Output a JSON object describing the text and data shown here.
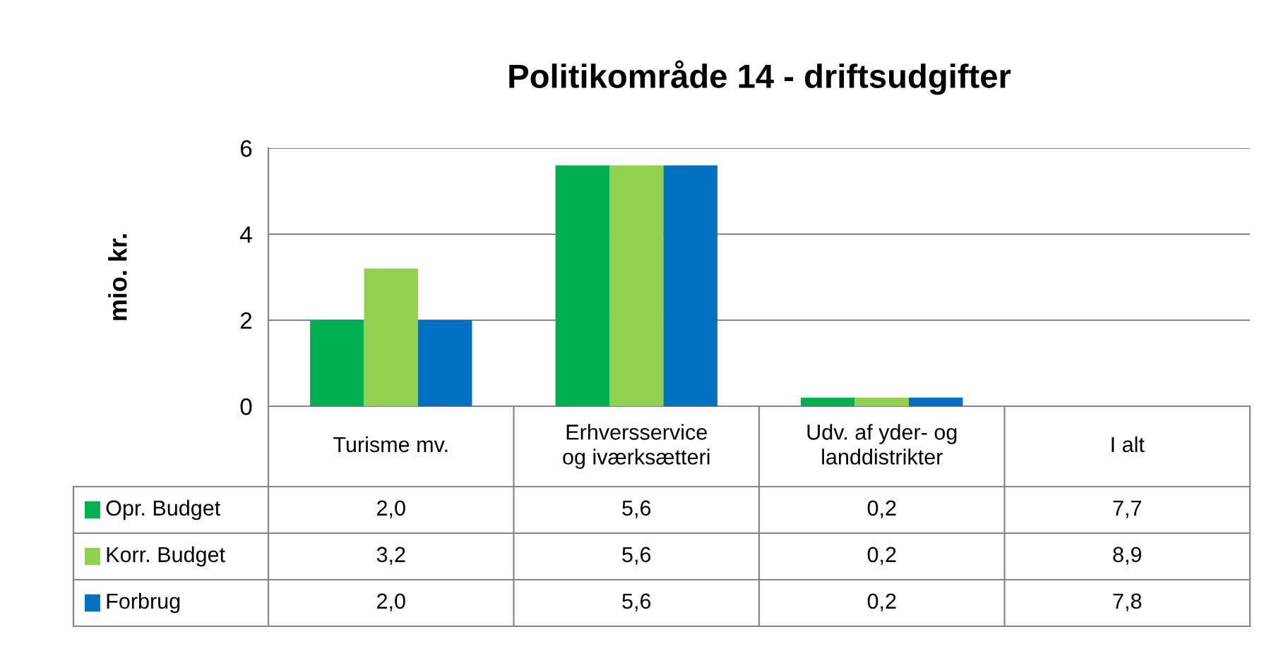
{
  "chart_data": {
    "type": "bar",
    "title": "Politikområde 14 - driftsudgifter",
    "ylabel": "mio. kr.",
    "categories": [
      "Turisme mv.",
      "Erhversservice\nog iværksætteri",
      "Udv. af yder- og\nlanddistrikter",
      "I alt"
    ],
    "series": [
      {
        "name": "Opr. Budget",
        "color": "#00b050",
        "values": [
          2.0,
          5.6,
          0.2,
          null
        ],
        "value_labels": [
          "2,0",
          "5,6",
          "0,2",
          "7,7"
        ]
      },
      {
        "name": "Korr. Budget",
        "color": "#92d050",
        "values": [
          3.2,
          5.6,
          0.2,
          null
        ],
        "value_labels": [
          "3,2",
          "5,6",
          "0,2",
          "8,9"
        ]
      },
      {
        "name": "Forbrug",
        "color": "#0070c0",
        "values": [
          2.0,
          5.6,
          0.2,
          null
        ],
        "value_labels": [
          "2,0",
          "5,6",
          "0,2",
          "7,8"
        ]
      }
    ],
    "ylim": [
      0,
      6
    ],
    "yticks": [
      0,
      2,
      4,
      6
    ],
    "grid": "y",
    "legend": "bottom left"
  }
}
